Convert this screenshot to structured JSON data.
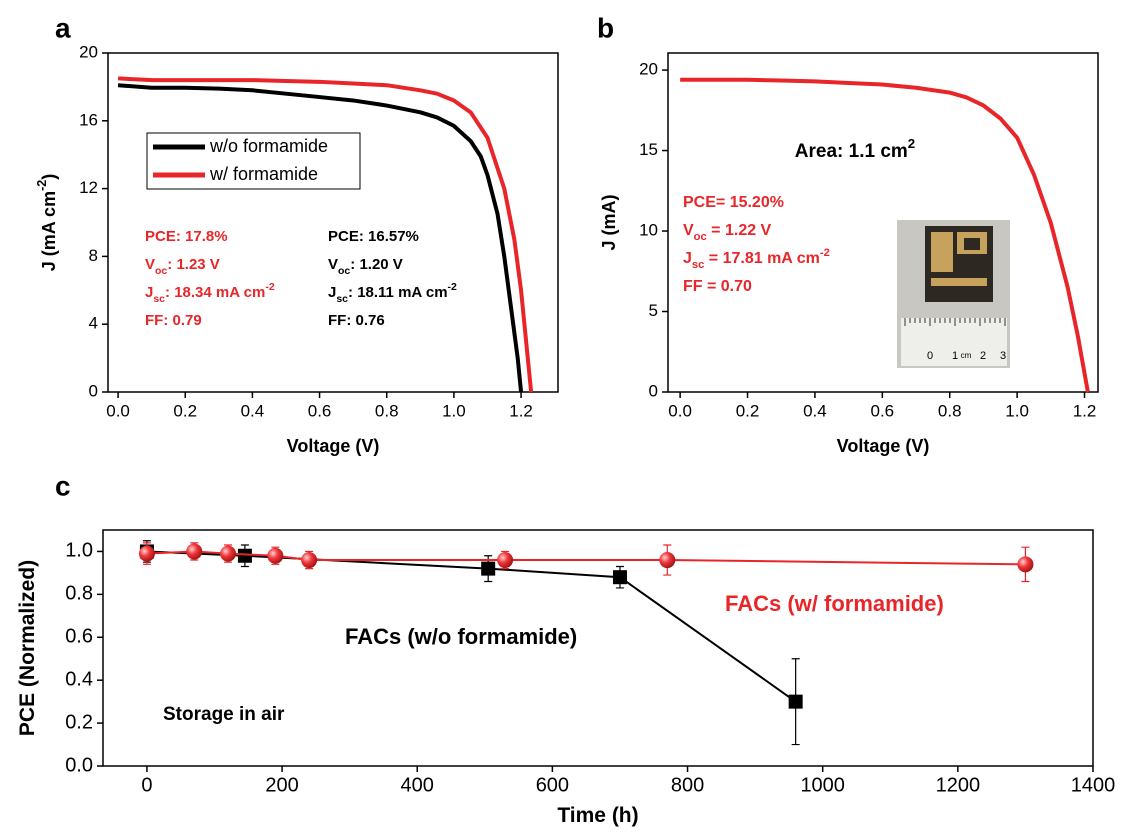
{
  "chart_data": [
    {
      "type": "line",
      "panel": "a",
      "x_label": [
        {
          "t": "Voltage (V)"
        }
      ],
      "y_label": [
        {
          "t": "J (mA cm"
        },
        {
          "sup": "-2"
        },
        {
          "t": ")"
        }
      ],
      "xlim": [
        -0.03,
        1.31
      ],
      "ylim": [
        0,
        20
      ],
      "xticks": [
        {
          "value": 0,
          "label": "0.0"
        },
        0.2,
        0.4,
        0.6,
        0.8,
        {
          "value": 1,
          "label": "1.0"
        },
        1.2
      ],
      "yticks": [
        0,
        4,
        8,
        12,
        16,
        20
      ],
      "legend": "upper left",
      "series": [
        {
          "name": "w/o formamide",
          "color": "#000000",
          "x": [
            0,
            0.1,
            0.2,
            0.3,
            0.4,
            0.5,
            0.6,
            0.7,
            0.8,
            0.9,
            0.95,
            1.0,
            1.05,
            1.08,
            1.1,
            1.13,
            1.15,
            1.17,
            1.19,
            1.2
          ],
          "values": [
            18.1,
            17.95,
            17.95,
            17.9,
            17.8,
            17.6,
            17.4,
            17.2,
            16.9,
            16.5,
            16.2,
            15.7,
            14.8,
            13.9,
            12.8,
            10.5,
            8,
            5,
            2,
            0
          ]
        },
        {
          "name": "w/ formamide",
          "color": "#e8262a",
          "x": [
            0,
            0.1,
            0.2,
            0.3,
            0.4,
            0.5,
            0.6,
            0.7,
            0.8,
            0.9,
            0.95,
            1.0,
            1.05,
            1.1,
            1.15,
            1.18,
            1.2,
            1.22,
            1.23
          ],
          "values": [
            18.5,
            18.4,
            18.4,
            18.4,
            18.4,
            18.35,
            18.3,
            18.2,
            18.1,
            17.8,
            17.6,
            17.2,
            16.5,
            15,
            12,
            9,
            6,
            2,
            0
          ]
        }
      ],
      "annotations": [
        {
          "color": "#e8262a",
          "lines": [
            [
              {
                "t": "PCE: 17.8%"
              }
            ],
            [
              {
                "t": "V"
              },
              {
                "sub": "oc"
              },
              {
                "t": ": 1.23 V"
              }
            ],
            [
              {
                "t": "J"
              },
              {
                "sub": "sc"
              },
              {
                "t": ": 18.34 mA cm"
              },
              {
                "sup": "-2"
              }
            ],
            [
              {
                "t": "FF: 0.79"
              }
            ]
          ]
        },
        {
          "color": "#000000",
          "lines": [
            [
              {
                "t": "PCE: 16.57%"
              }
            ],
            [
              {
                "t": "V"
              },
              {
                "sub": "oc"
              },
              {
                "t": ": 1.20 V"
              }
            ],
            [
              {
                "t": "J"
              },
              {
                "sub": "sc"
              },
              {
                "t": ": 18.11 mA cm"
              },
              {
                "sup": "-2"
              }
            ],
            [
              {
                "t": "FF: 0.76"
              }
            ]
          ]
        }
      ]
    },
    {
      "type": "line",
      "panel": "b",
      "x_label": [
        {
          "t": "Voltage (V)"
        }
      ],
      "y_label": [
        {
          "t": "J (mA)"
        }
      ],
      "xlim": [
        -0.036,
        1.24
      ],
      "ylim": [
        0,
        21.06
      ],
      "xticks": [
        {
          "value": 0,
          "label": "0.0"
        },
        0.2,
        0.4,
        0.6,
        0.8,
        {
          "value": 1,
          "label": "1.0"
        },
        1.2
      ],
      "yticks": [
        0,
        5,
        10,
        15,
        20
      ],
      "series": [
        {
          "color": "#e8262a",
          "x": [
            0,
            0.1,
            0.2,
            0.3,
            0.4,
            0.5,
            0.6,
            0.7,
            0.8,
            0.85,
            0.9,
            0.95,
            1.0,
            1.05,
            1.1,
            1.15,
            1.18,
            1.21
          ],
          "values": [
            19.4,
            19.4,
            19.4,
            19.35,
            19.3,
            19.2,
            19.1,
            18.9,
            18.6,
            18.3,
            17.8,
            17,
            15.8,
            13.5,
            10.5,
            6.5,
            3.5,
            0
          ]
        }
      ],
      "annotations": [
        {
          "color": "#000000",
          "lines": [
            [
              {
                "t": "Area: 1.1 cm"
              },
              {
                "sup": "2"
              }
            ]
          ]
        },
        {
          "color": "#e8262a",
          "lines": [
            [
              {
                "t": "PCE= 15.20%"
              }
            ],
            [
              {
                "t": "V"
              },
              {
                "sub": "oc"
              },
              {
                "t": " = 1.22 V"
              }
            ],
            [
              {
                "t": "J"
              },
              {
                "sub": "sc"
              },
              {
                "t": " = 17.81 mA cm"
              },
              {
                "sup": "-2"
              }
            ],
            [
              {
                "t": "FF = 0.70"
              }
            ]
          ]
        }
      ],
      "inset_ruler_labels": [
        "0",
        "1",
        "cm",
        "2",
        "3"
      ]
    },
    {
      "type": "line",
      "panel": "c",
      "x_label": [
        {
          "t": "Time (h)"
        }
      ],
      "y_label": [
        {
          "t": "PCE (Normalized)"
        }
      ],
      "xlim": [
        -65,
        1400
      ],
      "ylim": [
        0,
        1.1
      ],
      "xticks": [
        0,
        200,
        400,
        600,
        800,
        1000,
        1200,
        1400
      ],
      "yticks": [
        {
          "value": 0,
          "label": "0.0"
        },
        0.2,
        0.4,
        0.6,
        0.8,
        {
          "value": 1,
          "label": "1.0"
        }
      ],
      "series": [
        {
          "color": "#000000",
          "marker": "square",
          "x": [
            0,
            145,
            505,
            700,
            960
          ],
          "values": [
            1.0,
            0.98,
            0.92,
            0.88,
            0.3
          ],
          "errors": [
            0.05,
            0.05,
            0.06,
            0.05,
            0.2
          ]
        },
        {
          "color": "#e8262a",
          "marker": "circle",
          "x": [
            0,
            70,
            120,
            190,
            240,
            530,
            770,
            1300
          ],
          "values": [
            0.99,
            1.0,
            0.99,
            0.98,
            0.96,
            0.96,
            0.96,
            0.94
          ],
          "errors": [
            0.05,
            0.04,
            0.04,
            0.04,
            0.04,
            0.04,
            0.07,
            0.08
          ]
        }
      ],
      "annotations": [
        {
          "color": "#e8262a",
          "lines": [
            [
              {
                "t": "FACs (w/ formamide)"
              }
            ]
          ]
        },
        {
          "color": "#000000",
          "lines": [
            [
              {
                "t": "FACs (w/o formamide)"
              }
            ]
          ]
        },
        {
          "color": "#000000",
          "lines": [
            [
              {
                "t": "Storage in air"
              }
            ]
          ]
        }
      ]
    }
  ]
}
